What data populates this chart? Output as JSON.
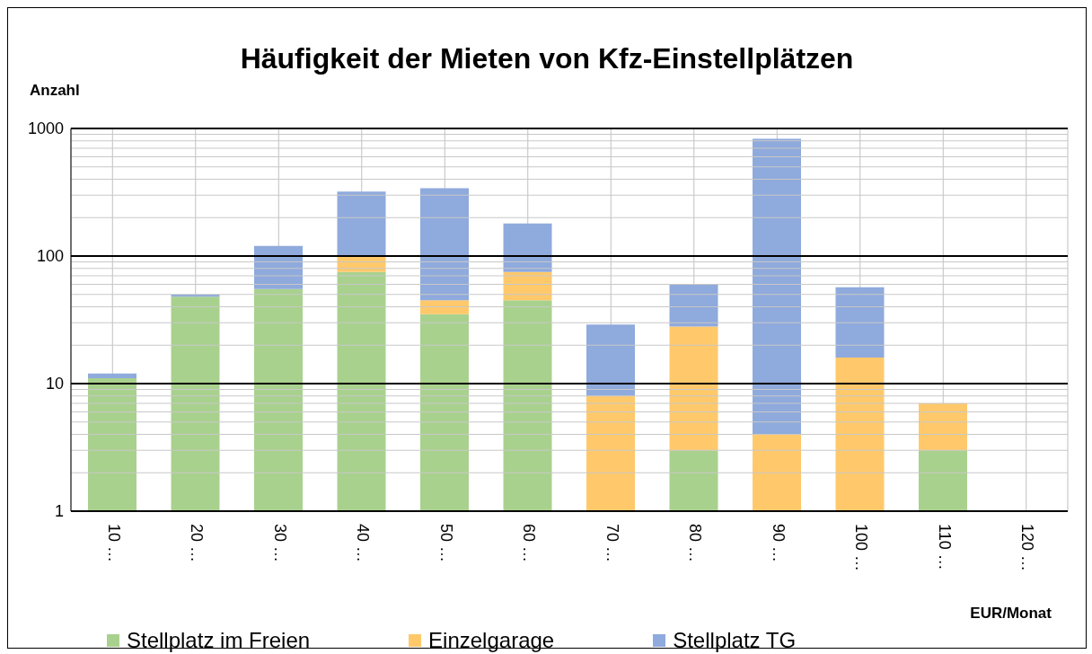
{
  "chart_data": {
    "type": "bar",
    "title": "Häufigkeit der Mieten von Kfz-Einstellplätzen",
    "ylabel": "Anzahl",
    "xlabel": "EUR/Monat",
    "categories": [
      "10 …",
      "20 …",
      "30 …",
      "40 …",
      "50 …",
      "60 …",
      "70 …",
      "80 …",
      "90 …",
      "100 …",
      "110 …",
      "120 …"
    ],
    "series": [
      {
        "name": "Stellplatz im Freien",
        "color": "#a9d18e",
        "values": [
          11,
          48,
          55,
          75,
          35,
          45,
          null,
          3,
          null,
          null,
          3,
          null
        ]
      },
      {
        "name": "Einzelgarage",
        "color": "#ffc96b",
        "values": [
          null,
          null,
          null,
          25,
          10,
          30,
          8,
          25,
          4,
          16,
          4,
          null
        ]
      },
      {
        "name": "Stellplatz TG",
        "color": "#8faadc",
        "values": [
          1,
          2,
          65,
          220,
          295,
          105,
          21,
          32,
          826,
          41,
          null,
          null
        ]
      }
    ],
    "stacked": true,
    "log": true,
    "ylim": [
      1,
      1000
    ],
    "yticks": [
      1,
      10,
      100,
      1000
    ],
    "grid": true,
    "legend": "bottom"
  }
}
